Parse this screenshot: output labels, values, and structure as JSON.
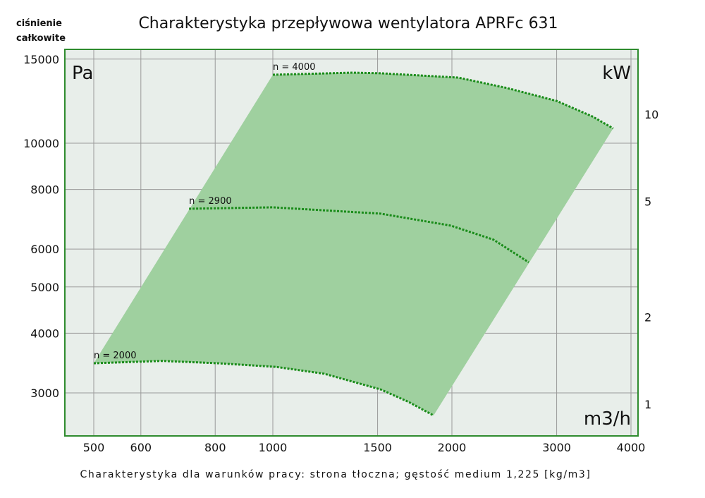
{
  "chart_data": {
    "type": "line",
    "title": "Charakterystyka przepływowa wentylatora APRFc 631",
    "ylabel": "ciśnienie całkowite",
    "ylabel_line1": "ciśnienie",
    "ylabel_line2": "całkowite",
    "y_unit": "Pa",
    "x_unit": "m3/h",
    "y2_unit": "kW",
    "footnote": "Charakterystyka dla warunków pracy: strona tłoczna; gęstość medium 1,225 [kg/m3]",
    "x_scale": "log",
    "y_scale": "log",
    "xlim": [
      460,
      4100
    ],
    "ylim": [
      2550,
      15800
    ],
    "x_ticks": [
      "500",
      "600",
      "800",
      "1000",
      "1500",
      "2000",
      "3000",
      "4000"
    ],
    "y_ticks": [
      "15000",
      "10000",
      "8000",
      "6000",
      "5000",
      "4000",
      "3000"
    ],
    "y2_ticks": [
      "10",
      "5",
      "2",
      "1"
    ],
    "grid": true,
    "colors": {
      "fill": "#9fd09f",
      "curve": "#1a8c1a",
      "plot_bg": "#e8eeea",
      "border": "#2e8b2e",
      "grid": "#9a9a9a"
    },
    "series": [
      {
        "name": "n = 4000",
        "x": [
          1000,
          1361,
          1518,
          2050,
          2481,
          3000,
          3443,
          3734
        ],
        "y": [
          13910,
          14050,
          14010,
          13720,
          13040,
          12260,
          11380,
          10740
        ]
      },
      {
        "name": "n = 2900",
        "x": [
          723,
          1000,
          1518,
          1992,
          2349,
          2693
        ],
        "y": [
          7290,
          7340,
          7120,
          6720,
          6280,
          5630
        ]
      },
      {
        "name": "n = 2000",
        "x": [
          500,
          651,
          810,
          1013,
          1220,
          1518,
          1693,
          1863
        ],
        "y": [
          3460,
          3500,
          3460,
          3400,
          3290,
          3050,
          2870,
          2690
        ]
      }
    ]
  }
}
